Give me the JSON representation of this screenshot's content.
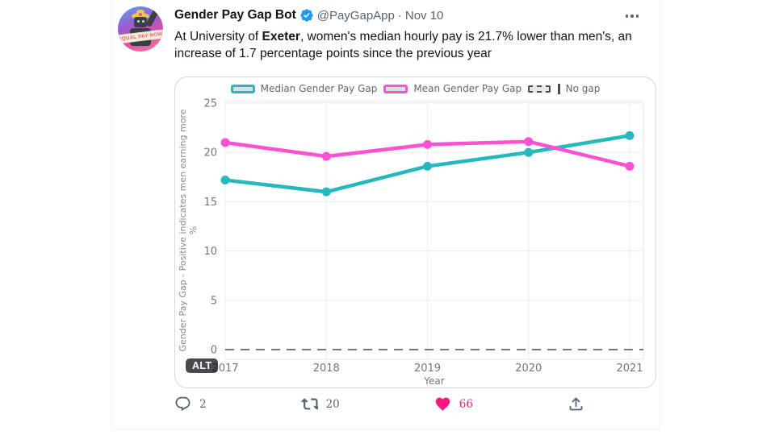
{
  "tweet": {
    "author": "Gender Pay Gap Bot",
    "handle": "@PayGapApp",
    "separator": "·",
    "date": "Nov 10",
    "text_before": "At University of ",
    "text_bold": "Exeter",
    "text_after": ", women's median hourly pay is 21.7% lower than men's, an increase of 1.7 percentage points since the previous year",
    "avatar_banner": "EQUAL PAY NOW",
    "alt_badge": "ALT",
    "actions": {
      "reply_count": "2",
      "retweet_count": "20",
      "like_count": "66"
    }
  },
  "chart_data": {
    "type": "line",
    "x": [
      2017,
      2018,
      2019,
      2020,
      2021
    ],
    "series": [
      {
        "name": "Median Gender Pay Gap",
        "color": "#26b8bc",
        "values": [
          17.2,
          16.0,
          18.6,
          20.0,
          21.7
        ]
      },
      {
        "name": "Mean Gender Pay Gap",
        "color": "#fb52d4",
        "values": [
          21.0,
          19.6,
          20.8,
          21.1,
          18.6
        ]
      }
    ],
    "no_gap": {
      "label": "No gap",
      "value": 0,
      "style": "dashed",
      "color": "#4d4d4d"
    },
    "xlabel": "Year",
    "ylabel": "Gender Pay Gap - Positive indicates men earning more",
    "ylabel_unit": "%",
    "yticks": [
      0,
      5,
      10,
      15,
      20,
      25
    ],
    "ylim": [
      0,
      25.5
    ],
    "grid": true,
    "legend_position": "top"
  },
  "colors": {
    "accent_like": "#f91880",
    "verified_blue": "#1d9bf0",
    "text_primary": "#0f1419",
    "text_secondary": "#536471",
    "card_border": "#cfd9de",
    "gridline": "#ececec"
  }
}
